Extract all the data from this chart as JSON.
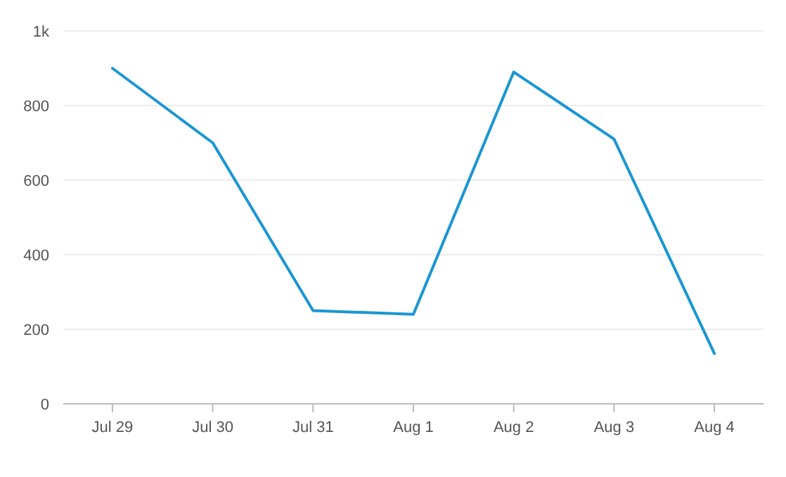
{
  "chart_data": {
    "type": "line",
    "categories": [
      "Jul 29",
      "Jul 30",
      "Jul 31",
      "Aug 1",
      "Aug 2",
      "Aug 3",
      "Aug 4"
    ],
    "series": [
      {
        "color": "#1a96d4",
        "values": [
          900,
          700,
          250,
          240,
          890,
          710,
          135
        ]
      }
    ],
    "ylim": [
      0,
      1000
    ],
    "yticks": [
      0,
      200,
      400,
      600,
      800,
      {
        "value": 1000,
        "label": "1k"
      }
    ],
    "grid": "y",
    "marker": "none",
    "line_style": "solid"
  }
}
